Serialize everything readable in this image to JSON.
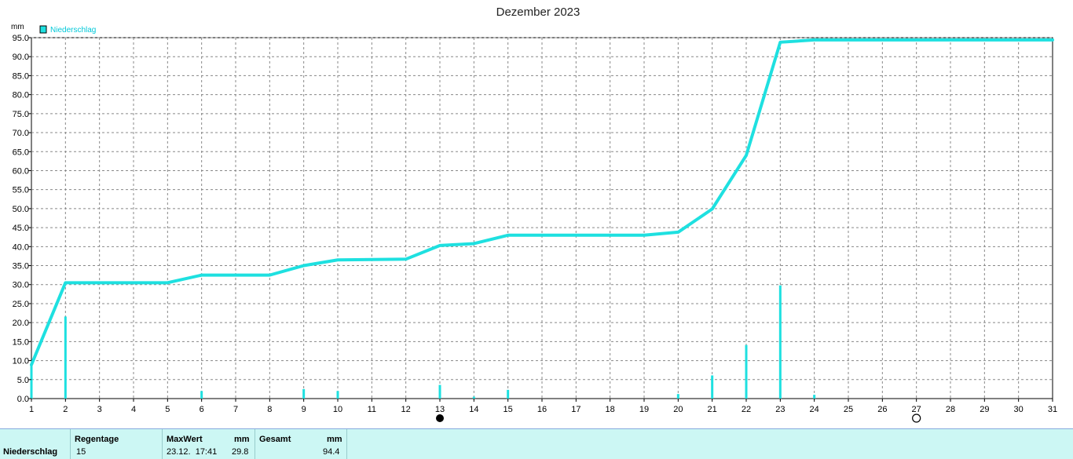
{
  "chart_data": {
    "type": "bar+line",
    "title": "Dezember 2023",
    "ylabel": "mm",
    "ylim": [
      0,
      95
    ],
    "yticks": [
      "0.0",
      "5.0",
      "10.0",
      "15.0",
      "20.0",
      "25.0",
      "30.0",
      "35.0",
      "40.0",
      "45.0",
      "50.0",
      "55.0",
      "60.0",
      "65.0",
      "70.0",
      "75.0",
      "80.0",
      "85.0",
      "90.0",
      "95.0"
    ],
    "xlim": [
      1,
      31
    ],
    "xticks": [
      "1",
      "2",
      "3",
      "4",
      "5",
      "6",
      "7",
      "8",
      "9",
      "10",
      "11",
      "12",
      "13",
      "14",
      "15",
      "16",
      "17",
      "18",
      "19",
      "20",
      "21",
      "22",
      "23",
      "24",
      "25",
      "26",
      "27",
      "28",
      "29",
      "30",
      "31"
    ],
    "grid": true,
    "legend": {
      "label": "Niederschlag",
      "placement": "top-left"
    },
    "color": "#1ee0e0",
    "moon_phases": [
      {
        "day": 13,
        "phase": "new"
      },
      {
        "day": 27,
        "phase": "full"
      }
    ],
    "series": [
      {
        "name": "Niederschlag",
        "kind": "bar",
        "points": [
          {
            "x": 1,
            "y": 8.9
          },
          {
            "x": 2,
            "y": 21.6
          },
          {
            "x": 6,
            "y": 2.0
          },
          {
            "x": 9,
            "y": 2.5
          },
          {
            "x": 10,
            "y": 2.0
          },
          {
            "x": 13,
            "y": 3.6
          },
          {
            "x": 14,
            "y": 0.5
          },
          {
            "x": 15,
            "y": 2.3
          },
          {
            "x": 20,
            "y": 1.2
          },
          {
            "x": 21,
            "y": 6.1
          },
          {
            "x": 22,
            "y": 14.1
          },
          {
            "x": 23,
            "y": 29.8
          },
          {
            "x": 24,
            "y": 1.0
          }
        ]
      },
      {
        "name": "Niederschlag",
        "kind": "line",
        "points": [
          {
            "x": 1,
            "y": 8.9
          },
          {
            "x": 2,
            "y": 30.5
          },
          {
            "x": 5,
            "y": 30.5
          },
          {
            "x": 6,
            "y": 32.5
          },
          {
            "x": 8,
            "y": 32.5
          },
          {
            "x": 9,
            "y": 35.0
          },
          {
            "x": 10,
            "y": 36.5
          },
          {
            "x": 12,
            "y": 36.7
          },
          {
            "x": 13,
            "y": 40.3
          },
          {
            "x": 14,
            "y": 40.8
          },
          {
            "x": 15,
            "y": 43.0
          },
          {
            "x": 19,
            "y": 43.0
          },
          {
            "x": 20,
            "y": 43.8
          },
          {
            "x": 21,
            "y": 49.9
          },
          {
            "x": 22,
            "y": 64.0
          },
          {
            "x": 23,
            "y": 93.8
          },
          {
            "x": 24,
            "y": 94.4
          },
          {
            "x": 31,
            "y": 94.4
          }
        ]
      }
    ]
  },
  "summary": {
    "row_label": "Niederschlag",
    "regentage_label": "Regentage",
    "regentage_value": "15",
    "maxwert_label": "MaxWert",
    "maxwert_unit": "mm",
    "maxwert_time": "23.12.  17:41",
    "maxwert_value": "29.8",
    "gesamt_label": "Gesamt",
    "gesamt_unit": "mm",
    "gesamt_value": "94.4"
  }
}
